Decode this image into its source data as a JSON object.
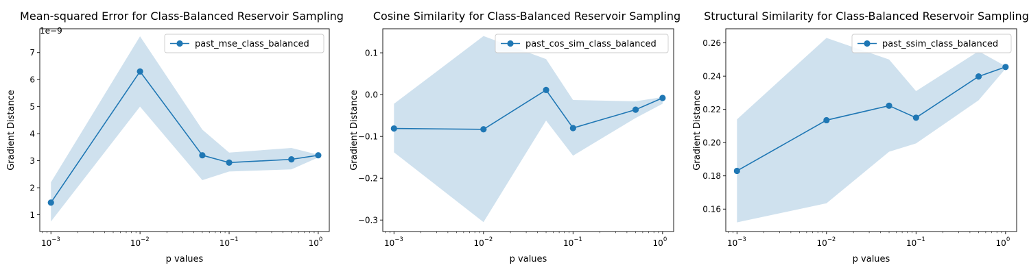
{
  "chart_data": [
    {
      "type": "line",
      "title": "Mean-squared Error for Class-Balanced Reservoir Sampling",
      "xlabel": "p values",
      "ylabel": "Gradient Distance",
      "xscale": "log",
      "xlim": [
        0.00075,
        1.33
      ],
      "ylim": [
        0.38,
        7.88
      ],
      "y_multiplier_label": "1e−9",
      "y_ticks": [
        1,
        2,
        3,
        4,
        5,
        6,
        7
      ],
      "y_tick_labels": [
        "1",
        "2",
        "3",
        "4",
        "5",
        "6",
        "7"
      ],
      "x_ticks": [
        0.001,
        0.01,
        0.1,
        1
      ],
      "x_tick_labels": [
        [
          "10",
          "−3"
        ],
        [
          "10",
          "−2"
        ],
        [
          "10",
          "−1"
        ],
        [
          "10",
          "0"
        ]
      ],
      "legend_position": "upper-right",
      "color": "#1f77b4",
      "band_color": "#cfe1ee",
      "series": [
        {
          "name": "past_mse_class_balanced",
          "x": [
            0.001,
            0.01,
            0.05,
            0.1,
            0.5,
            1
          ],
          "y": [
            1.45,
            6.3,
            3.2,
            2.93,
            3.05,
            3.2
          ],
          "lower": [
            0.75,
            5.0,
            2.28,
            2.6,
            2.68,
            3.12
          ],
          "upper": [
            2.2,
            7.6,
            4.15,
            3.3,
            3.47,
            3.22
          ]
        }
      ]
    },
    {
      "type": "line",
      "title": "Cosine Similarity for Class-Balanced Reservoir Sampling",
      "xlabel": "p values",
      "ylabel": "Gradient Distance",
      "xscale": "log",
      "xlim": [
        0.00075,
        1.33
      ],
      "ylim": [
        -0.3275,
        0.1575
      ],
      "y_ticks": [
        -0.3,
        -0.2,
        -0.1,
        0.0,
        0.1
      ],
      "y_tick_labels": [
        "−0.3",
        "−0.2",
        "−0.1",
        "0.0",
        "0.1"
      ],
      "x_ticks": [
        0.001,
        0.01,
        0.1,
        1
      ],
      "x_tick_labels": [
        [
          "10",
          "−3"
        ],
        [
          "10",
          "−2"
        ],
        [
          "10",
          "−1"
        ],
        [
          "10",
          "0"
        ]
      ],
      "legend_position": "upper-right",
      "color": "#1f77b4",
      "band_color": "#cfe1ee",
      "series": [
        {
          "name": "past_cos_sim_class_balanced",
          "x": [
            0.001,
            0.01,
            0.05,
            0.1,
            0.5,
            1
          ],
          "y": [
            -0.081,
            -0.083,
            0.011,
            -0.08,
            -0.036,
            -0.008
          ],
          "lower": [
            -0.138,
            -0.305,
            -0.062,
            -0.146,
            -0.056,
            -0.022
          ],
          "upper": [
            -0.022,
            0.14,
            0.085,
            -0.013,
            -0.016,
            -0.006
          ]
        }
      ]
    },
    {
      "type": "line",
      "title": "Structural Similarity for Class-Balanced Reservoir Sampling",
      "xlabel": "p values",
      "ylabel": "Gradient Distance",
      "xscale": "log",
      "xlim": [
        0.00075,
        1.33
      ],
      "ylim": [
        0.1465,
        0.2685
      ],
      "y_ticks": [
        0.16,
        0.18,
        0.2,
        0.22,
        0.24,
        0.26
      ],
      "y_tick_labels": [
        "0.16",
        "0.18",
        "0.20",
        "0.22",
        "0.24",
        "0.26"
      ],
      "x_ticks": [
        0.001,
        0.01,
        0.1,
        1
      ],
      "x_tick_labels": [
        [
          "10",
          "−3"
        ],
        [
          "10",
          "−2"
        ],
        [
          "10",
          "−1"
        ],
        [
          "10",
          "0"
        ]
      ],
      "legend_position": "upper-right",
      "color": "#1f77b4",
      "band_color": "#cfe1ee",
      "series": [
        {
          "name": "past_ssim_class_balanced",
          "x": [
            0.001,
            0.01,
            0.05,
            0.1,
            0.5,
            1
          ],
          "y": [
            0.183,
            0.2135,
            0.2222,
            0.215,
            0.2398,
            0.2455
          ],
          "lower": [
            0.152,
            0.1635,
            0.1945,
            0.1995,
            0.2255,
            0.2445
          ],
          "upper": [
            0.214,
            0.263,
            0.25,
            0.231,
            0.255,
            0.246
          ]
        }
      ]
    }
  ]
}
